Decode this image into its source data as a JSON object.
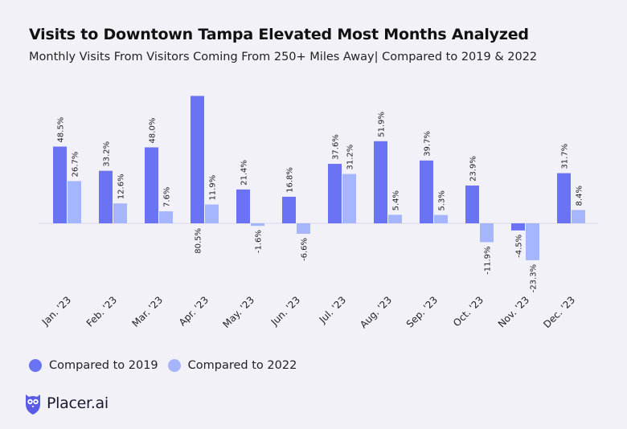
{
  "header": {
    "title": "Visits to Downtown Tampa Elevated Most Months Analyzed",
    "subtitle": "Monthly Visits From Visitors Coming From 250+ Miles Away| Compared to 2019 & 2022"
  },
  "chart_data": {
    "type": "bar",
    "title": "Visits to Downtown Tampa Elevated Most Months Analyzed",
    "subtitle": "Monthly Visits From Visitors Coming From 250+ Miles Away| Compared to 2019 & 2022",
    "categories": [
      "Jan. '23",
      "Feb. '23",
      "Mar. '23",
      "Apr. '23",
      "May. '23",
      "Jun. '23",
      "Jul. '23",
      "Aug. '23",
      "Sep. '23",
      "Oct. '23",
      "Nov. '23",
      "Dec. '23"
    ],
    "series": [
      {
        "name": "Compared to 2019",
        "color": "#6b73f5",
        "values": [
          48.5,
          33.2,
          48.0,
          80.5,
          21.4,
          16.8,
          37.6,
          51.9,
          39.7,
          23.9,
          -4.5,
          31.7
        ],
        "labels": [
          "48.5%",
          "33.2%",
          "48.0%",
          "80.5%",
          "21.4%",
          "16.8%",
          "37.6%",
          "51.9%",
          "39.7%",
          "23.9%",
          "-4.5%",
          "31.7%"
        ]
      },
      {
        "name": "Compared to 2022",
        "color": "#a5b6ff",
        "values": [
          26.7,
          12.6,
          7.6,
          11.9,
          -1.6,
          -6.6,
          31.2,
          5.4,
          5.3,
          -11.9,
          -23.3,
          8.4
        ],
        "labels": [
          "26.7%",
          "12.6%",
          "7.6%",
          "11.9%",
          "-1.6%",
          "-6.6%",
          "31.2%",
          "5.4%",
          "5.3%",
          "-11.9%",
          "-23.3%",
          "8.4%"
        ]
      }
    ],
    "ylim": [
      -25,
      82
    ],
    "xlabel": "",
    "ylabel": "",
    "grid": false,
    "legend": "bottom-left"
  },
  "legend": {
    "items": [
      {
        "label": "Compared to 2019",
        "color": "#6b73f5"
      },
      {
        "label": "Compared to 2022",
        "color": "#a5b6ff"
      }
    ]
  },
  "brand": {
    "name": "Placer.ai",
    "icon": "placer-owl-logo-icon",
    "color": "#5a5ce6"
  }
}
